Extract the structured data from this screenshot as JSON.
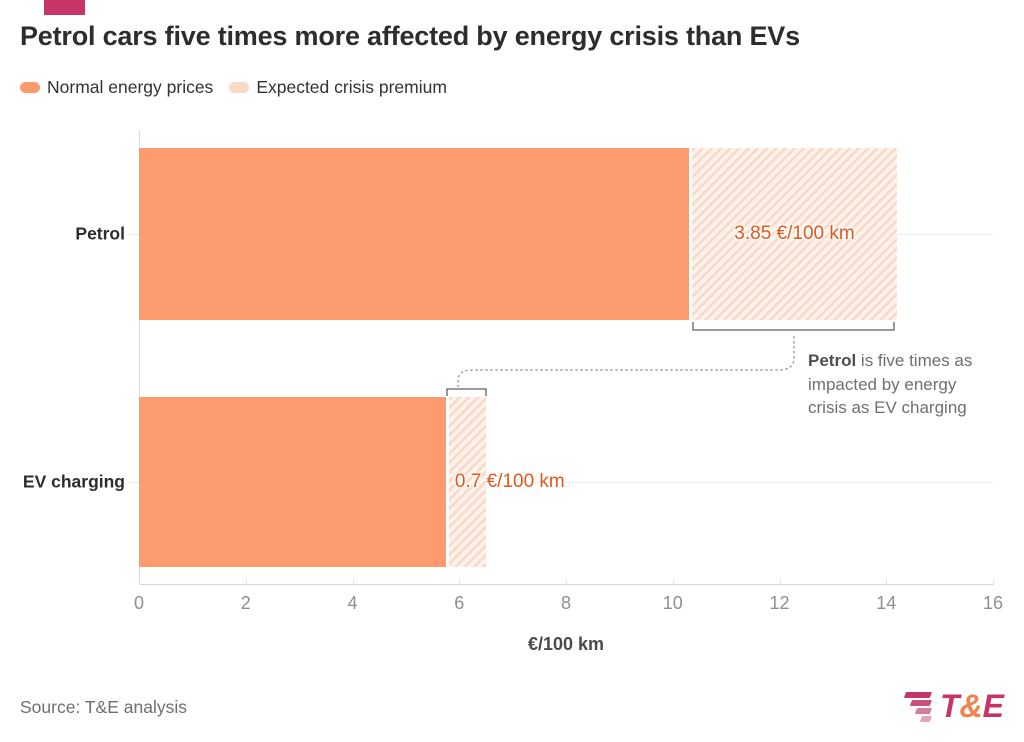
{
  "header": {
    "title": "Petrol cars five times more affected by energy crisis than EVs"
  },
  "legend": {
    "items": [
      {
        "label": "Normal energy prices",
        "color": "#fb9b6d"
      },
      {
        "label": "Expected crisis premium",
        "color": "#fbd9c8"
      }
    ]
  },
  "chart_data": {
    "type": "bar",
    "orientation": "horizontal",
    "title": "Petrol cars five times more affected by energy crisis than EVs",
    "categories": [
      "Petrol",
      "EV charging"
    ],
    "series": [
      {
        "name": "Normal energy prices",
        "values": [
          10.3,
          5.75
        ]
      },
      {
        "name": "Expected crisis premium",
        "values": [
          3.85,
          0.7
        ]
      }
    ],
    "bar_labels": [
      "3.85 €/100 km",
      "0.7 €/100 km"
    ],
    "xlabel": "€/100 km",
    "xlim": [
      0,
      16
    ],
    "xticks": [
      0,
      2,
      4,
      6,
      8,
      10,
      12,
      14,
      16
    ],
    "grid": "category gridlines only",
    "legend_position": "top-left",
    "colors": {
      "normal": "#fc9b6e",
      "premium_stripe": "#f9d9c6",
      "premium_background": "#fdf2ec",
      "value_label": "#de5a1c",
      "brand_accent": "#c73568"
    }
  },
  "annotation": {
    "bold": "Petrol",
    "rest": " is five times as impacted by energy crisis as EV charging"
  },
  "footer": {
    "source": "Source: T&E analysis",
    "logo_t": "T",
    "logo_amp": "&",
    "logo_e": "E"
  }
}
